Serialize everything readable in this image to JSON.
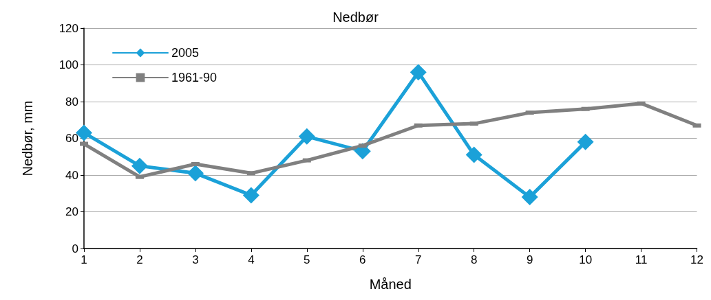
{
  "chart_data": {
    "type": "line",
    "title": "Nedbør",
    "xlabel": "Måned",
    "ylabel": "Nedbør, mm",
    "x": [
      1,
      2,
      3,
      4,
      5,
      6,
      7,
      8,
      9,
      10,
      11,
      12
    ],
    "xlim": [
      1,
      12
    ],
    "xticks": [
      1,
      2,
      3,
      4,
      5,
      6,
      7,
      8,
      9,
      10,
      11,
      12
    ],
    "ylim": [
      0,
      120
    ],
    "yticks": [
      0,
      20,
      40,
      60,
      80,
      100,
      120
    ],
    "grid": "y",
    "legend": "top left",
    "line_style": "solid",
    "series": [
      {
        "name": "2005",
        "color": "#1ba1d8",
        "marker": "diamond",
        "values": [
          63,
          45,
          41,
          29,
          61,
          53,
          96,
          51,
          28,
          58,
          null,
          null
        ]
      },
      {
        "name": "1961-90",
        "color": "#808080",
        "marker": "square",
        "values": [
          57,
          39,
          46,
          41,
          48,
          56,
          67,
          68,
          74,
          76,
          79,
          67
        ]
      }
    ]
  }
}
